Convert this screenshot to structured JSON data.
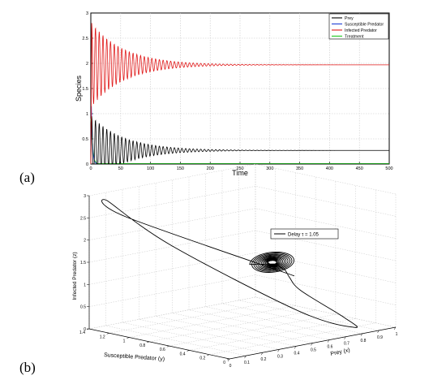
{
  "panel_labels": {
    "a": "(a)",
    "b": "(b)"
  },
  "chart_data": [
    {
      "type": "line",
      "panel": "(a)",
      "xlabel": "Time",
      "ylabel": "Species",
      "xlim": [
        0,
        500
      ],
      "ylim": [
        0,
        3
      ],
      "xticks": [
        "0",
        "50",
        "100",
        "150",
        "200",
        "250",
        "300",
        "350",
        "400",
        "450",
        "500"
      ],
      "yticks": [
        "0",
        "0.5",
        "1",
        "1.5",
        "2",
        "2.5",
        "3"
      ],
      "grid": true,
      "legend_position": "top-right",
      "series": [
        {
          "name": "Prey",
          "color": "#000000",
          "kind": "damped-oscillation",
          "equilibrium": 0.27,
          "peak": 0.95,
          "period": 6.3,
          "decay": 55
        },
        {
          "name": "Susceptible Predator",
          "color": "#1f3fd6",
          "kind": "decay",
          "points": [
            [
              0,
              0.3
            ],
            [
              1,
              1.15
            ],
            [
              2,
              0.6
            ],
            [
              4,
              0.2
            ],
            [
              6,
              0.05
            ],
            [
              10,
              0
            ]
          ]
        },
        {
          "name": "Infected Predator",
          "color": "#e01818",
          "kind": "damped-oscillation",
          "equilibrium": 1.97,
          "peak": 2.8,
          "period": 6.3,
          "decay": 55
        },
        {
          "name": "Treatment",
          "color": "#1ec81e",
          "kind": "decay",
          "points": [
            [
              0,
              0.9
            ],
            [
              2,
              0.55
            ],
            [
              4,
              0.25
            ],
            [
              6,
              0.08
            ],
            [
              10,
              0.01
            ],
            [
              500,
              0.01
            ]
          ]
        }
      ]
    },
    {
      "type": "line",
      "panel": "(b)",
      "projection": "3d",
      "xlabel": "Prey (x)",
      "ylabel": "Susceptible Predator (y)",
      "zlabel": "Infected Predator (z)",
      "xlim": [
        0,
        1
      ],
      "ylim": [
        0,
        1.4
      ],
      "zlim": [
        0,
        3
      ],
      "xticks": [
        "0",
        "0.1",
        "0.2",
        "0.3",
        "0.4",
        "0.5",
        "0.6",
        "0.7",
        "0.8",
        "0.9",
        "1"
      ],
      "yticks": [
        "0",
        "0.2",
        "0.4",
        "0.6",
        "0.8",
        "1",
        "1.2",
        "1.4"
      ],
      "zticks": [
        "0",
        "0.5",
        "1",
        "1.5",
        "2",
        "2.5",
        "3"
      ],
      "grid": true,
      "legend_position": "top-right",
      "series": [
        {
          "name": "Delay τ = 1.05",
          "color": "#000000",
          "transient": [
            [
              0.45,
              0.1,
              1.5
            ],
            [
              0.1,
              1.2,
              2.55
            ],
            [
              0.08,
              1.35,
              2.85
            ],
            [
              0.25,
              1.0,
              1.9
            ],
            [
              0.6,
              0.3,
              0.5
            ],
            [
              0.8,
              0.08,
              0.1
            ],
            [
              0.75,
              0.1,
              0.35
            ],
            [
              0.55,
              0.2,
              1.05
            ],
            [
              0.45,
              0.15,
              1.45
            ],
            [
              0.38,
              0.08,
              1.7
            ],
            [
              0.3,
              0.05,
              1.9
            ]
          ],
          "attractor_center": [
            0.27,
            0.02,
            1.97
          ]
        }
      ]
    }
  ]
}
